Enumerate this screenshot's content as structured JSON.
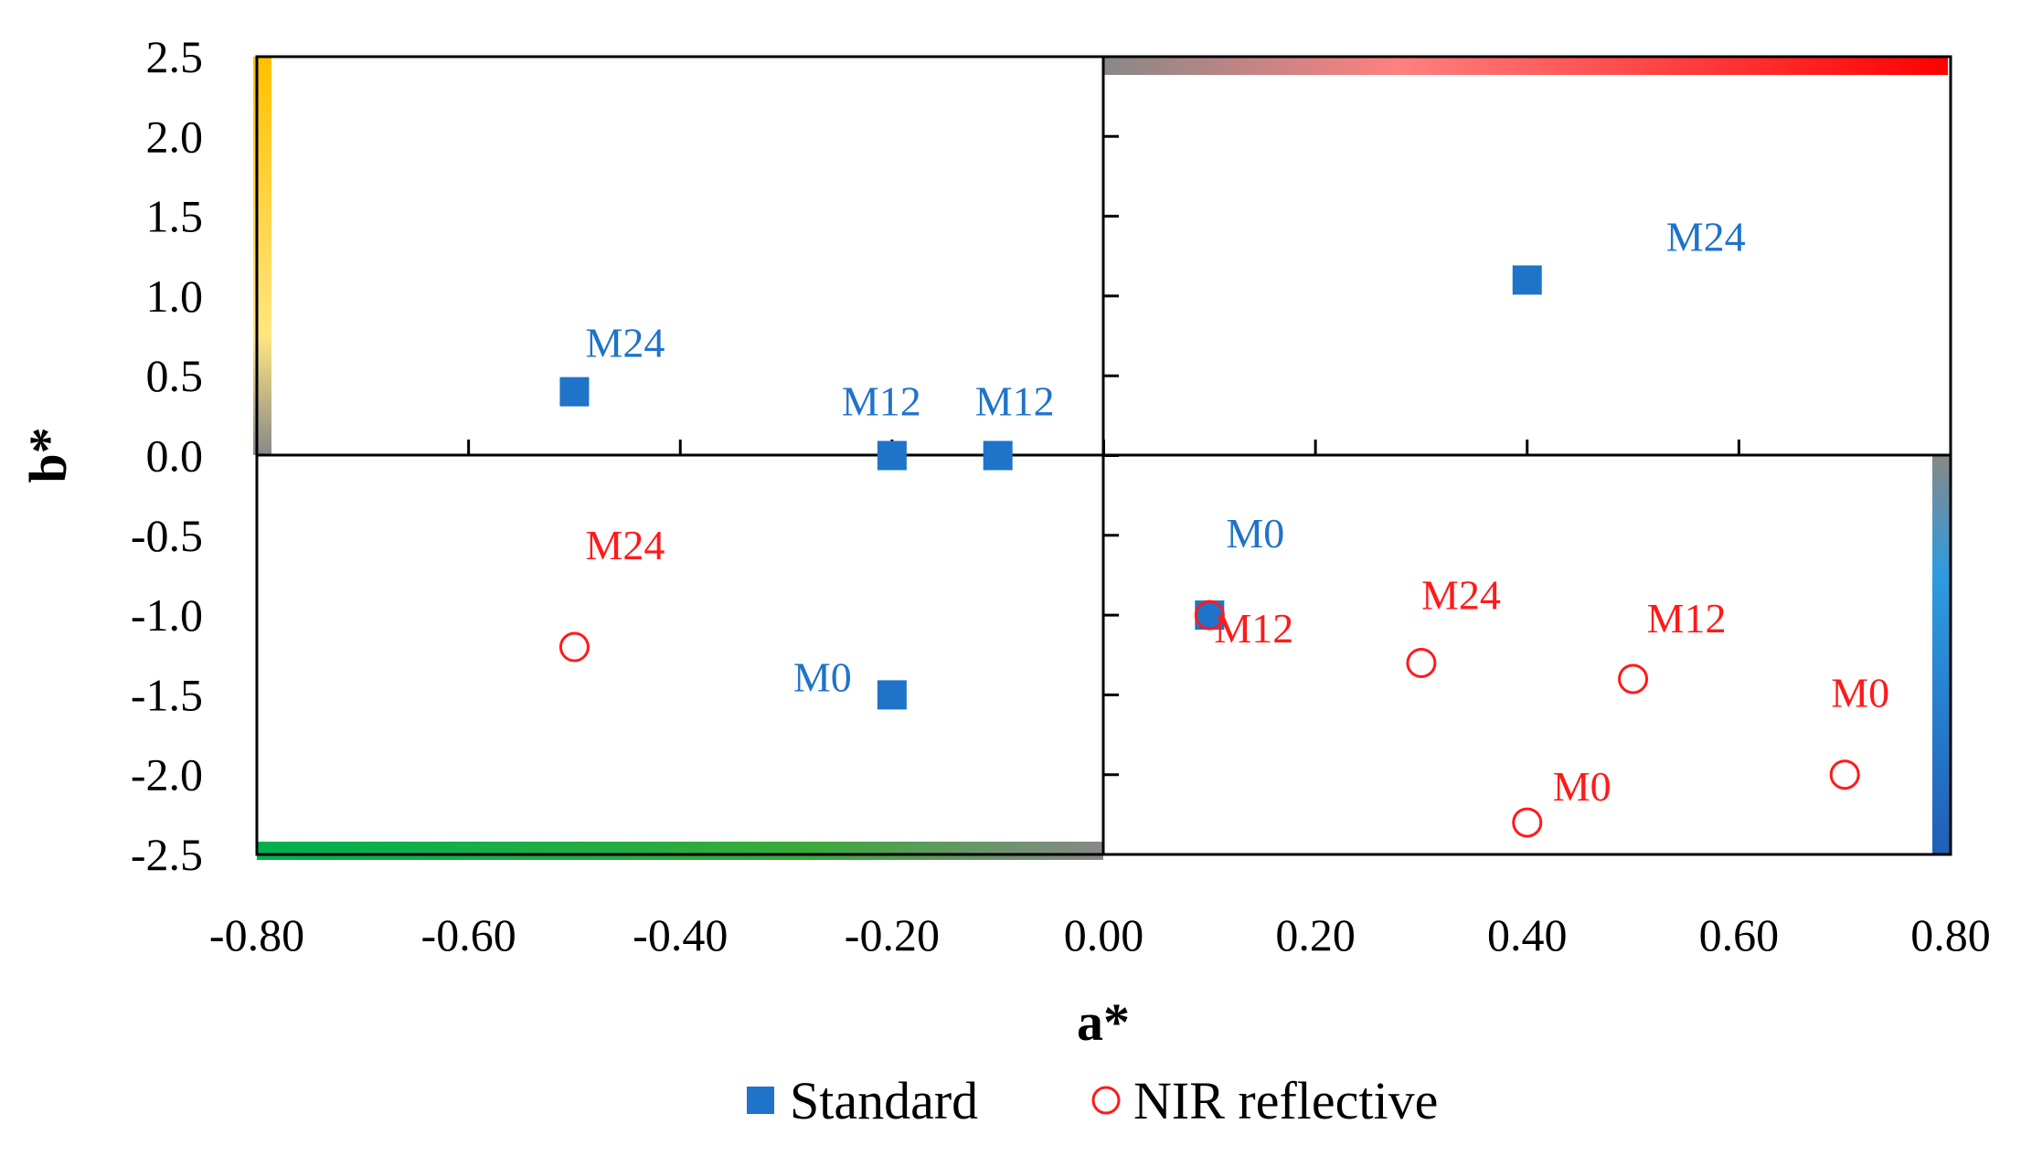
{
  "chart_data": {
    "type": "scatter",
    "xlabel": "a*",
    "ylabel": "b*",
    "xlim": [
      -0.8,
      0.8
    ],
    "ylim": [
      -2.5,
      2.5
    ],
    "x_ticks": [
      "-0.80",
      "-0.60",
      "-0.40",
      "-0.20",
      "0.00",
      "0.20",
      "0.40",
      "0.60",
      "0.80"
    ],
    "y_ticks": [
      "2.5",
      "2.0",
      "1.5",
      "1.0",
      "0.5",
      "0.0",
      "-0.5",
      "-1.0",
      "-1.5",
      "-2.0",
      "-2.5"
    ],
    "grid": false,
    "legend_position": "bottom",
    "series": [
      {
        "name": "Standard",
        "marker": "filled-square",
        "color": "#1f73c9",
        "points": [
          {
            "x": -0.5,
            "y": 0.4,
            "label": "M24"
          },
          {
            "x": -0.2,
            "y": 0.0,
            "label": "M12"
          },
          {
            "x": -0.1,
            "y": 0.0,
            "label": "M12"
          },
          {
            "x": -0.2,
            "y": -1.5,
            "label": "M0"
          },
          {
            "x": 0.4,
            "y": 1.1,
            "label": "M24"
          },
          {
            "x": 0.1,
            "y": -1.0,
            "label": "M0"
          }
        ]
      },
      {
        "name": "NIR reflective",
        "marker": "open-circle",
        "color": "#ff1a1a",
        "points": [
          {
            "x": -0.5,
            "y": -1.2,
            "label": "M24"
          },
          {
            "x": 0.1,
            "y": -1.0,
            "label": "M12"
          },
          {
            "x": 0.3,
            "y": -1.3,
            "label": "M24"
          },
          {
            "x": 0.5,
            "y": -1.4,
            "label": "M12"
          },
          {
            "x": 0.4,
            "y": -2.3,
            "label": "M0"
          },
          {
            "x": 0.7,
            "y": -2.0,
            "label": "M0"
          }
        ]
      }
    ],
    "color_bars": {
      "top_right": [
        "#888888",
        "#ff8080",
        "#ff0000"
      ],
      "left_top": [
        "#888888",
        "#ffe680",
        "#ffc000"
      ],
      "bottom_left": [
        "#00b050",
        "#888888"
      ],
      "right_bottom": [
        "#888888",
        "#2e9be0",
        "#1f5fb8"
      ]
    }
  }
}
